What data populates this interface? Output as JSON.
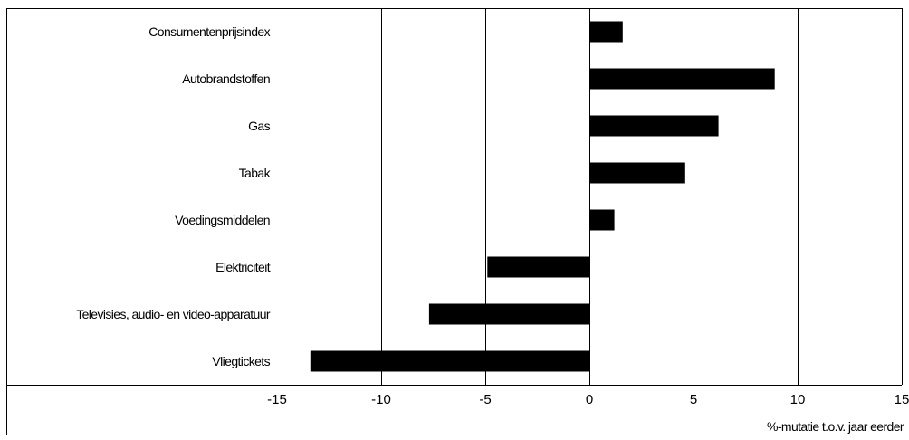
{
  "chart_data": {
    "type": "bar",
    "orientation": "horizontal",
    "categories": [
      "Consumentenprijsindex",
      "Autobrandstoffen",
      "Gas",
      "Tabak",
      "Voedingsmiddelen",
      "Elektriciteit",
      "Televisies, audio- en video-apparatuur",
      "Vliegtickets"
    ],
    "values": [
      1.6,
      8.9,
      6.2,
      4.6,
      1.2,
      -4.9,
      -7.7,
      -13.4
    ],
    "xlim": [
      -15,
      15
    ],
    "xticks": [
      "-15",
      "-10",
      "-5",
      "0",
      "5",
      "10",
      "15"
    ],
    "xlabel": "%-mutatie t.o.v. jaar eerder",
    "ylabel": "",
    "title": "",
    "grid": "vertical",
    "legend": "none",
    "bar_color": "#000000",
    "grid_color": "#000000"
  }
}
